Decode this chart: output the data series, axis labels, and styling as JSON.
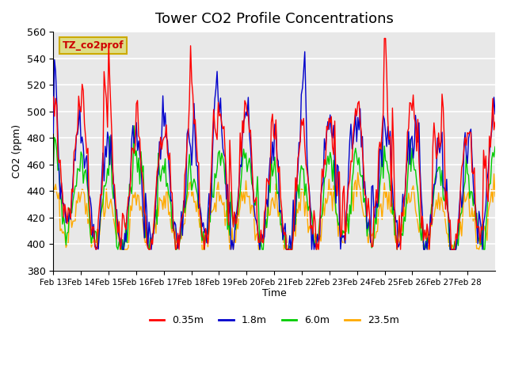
{
  "title": "Tower CO2 Profile Concentrations",
  "xlabel": "Time",
  "ylabel": "CO2 (ppm)",
  "ylim": [
    380,
    560
  ],
  "yticks": [
    380,
    400,
    420,
    440,
    460,
    480,
    500,
    520,
    540,
    560
  ],
  "xtick_labels": [
    "Feb 13",
    "Feb 14",
    "Feb 15",
    "Feb 16",
    "Feb 17",
    "Feb 18",
    "Feb 19",
    "Feb 20",
    "Feb 21",
    "Feb 22",
    "Feb 23",
    "Feb 24",
    "Feb 25",
    "Feb 26",
    "Feb 27",
    "Feb 28"
  ],
  "series_labels": [
    "0.35m",
    "1.8m",
    "6.0m",
    "23.5m"
  ],
  "series_colors": [
    "#ff0000",
    "#0000cc",
    "#00cc00",
    "#ffaa00"
  ],
  "annotation_text": "TZ_co2prof",
  "annotation_color": "#dddd88",
  "annotation_border": "#ccaa00",
  "plot_bg_color": "#e8e8e8",
  "n_points": 384,
  "seed": 42
}
